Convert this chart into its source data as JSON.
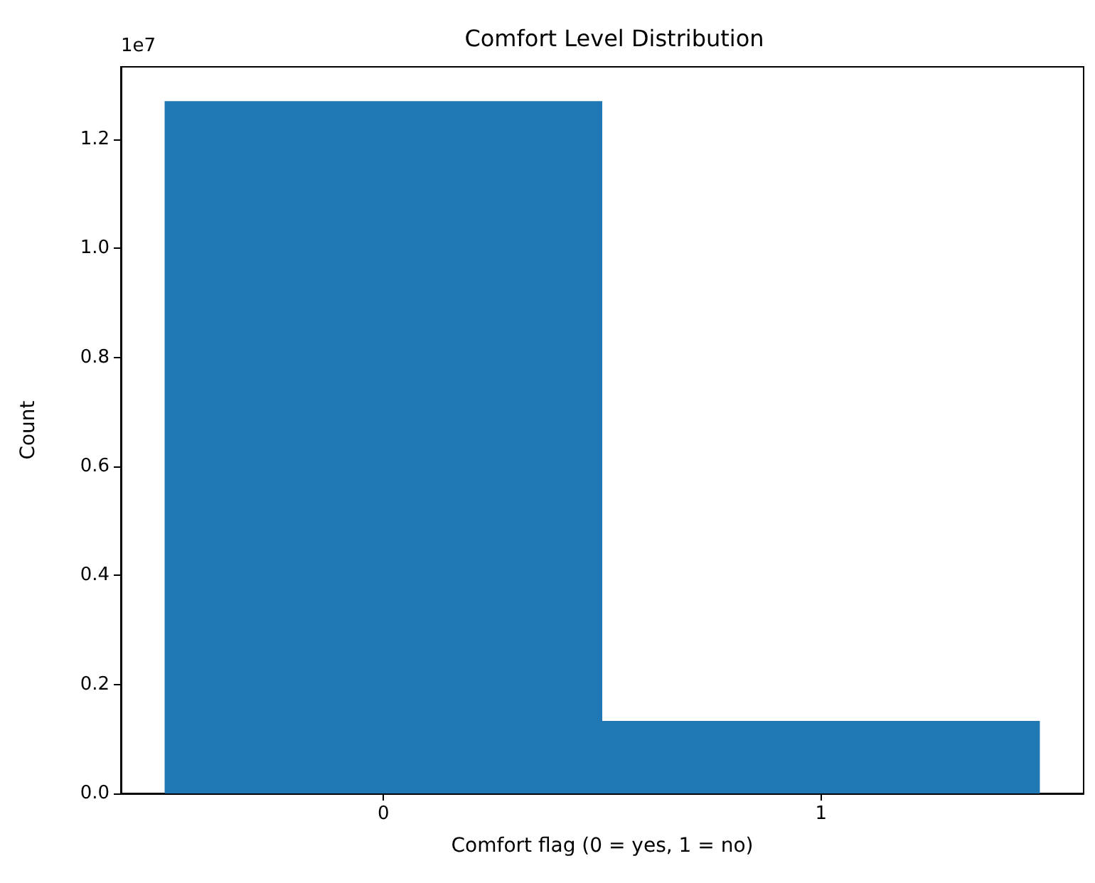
{
  "chart_data": {
    "type": "histogram",
    "title": "Comfort Level Distribution",
    "xlabel": "Comfort flag (0 = yes, 1 = no)",
    "ylabel": "Count",
    "bins": [
      -0.5,
      0.5,
      1.5
    ],
    "values": [
      1.27,
      0.133
    ],
    "color": "#1f77b4",
    "xlim": [
      -0.6,
      1.6
    ],
    "xticks": [
      0,
      1
    ],
    "ylim": [
      0,
      1.333
    ],
    "yticks": [
      {
        "value": 0,
        "label": "0.0"
      },
      {
        "value": 0.2,
        "label": "0.2"
      },
      {
        "value": 0.4,
        "label": "0.4"
      },
      {
        "value": 0.6,
        "label": "0.6"
      },
      {
        "value": 0.8,
        "label": "0.8"
      },
      {
        "value": 1.0,
        "label": "1.0"
      },
      {
        "value": 1.2,
        "label": "1.2"
      }
    ],
    "annotations": [
      "1e7"
    ]
  }
}
